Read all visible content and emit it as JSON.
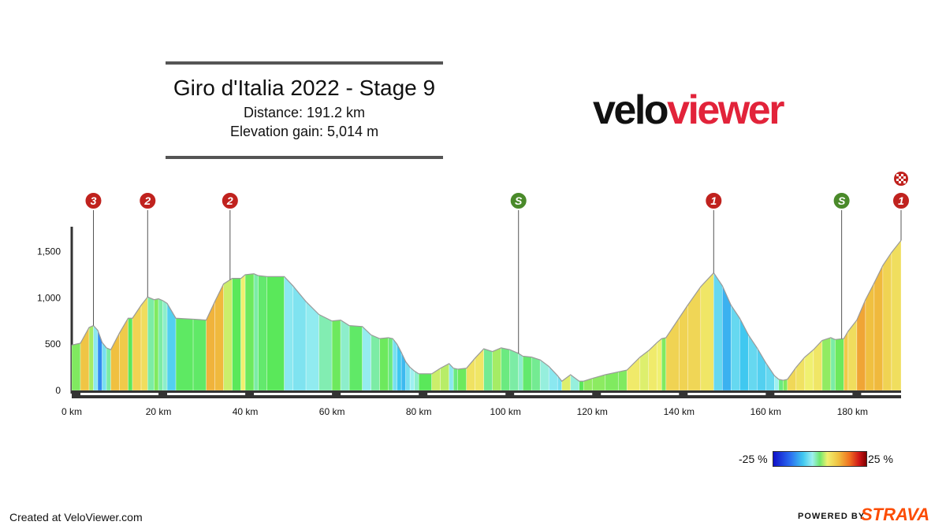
{
  "header": {
    "title": "Giro d'Italia 2022 - Stage 9",
    "distance": "Distance: 191.2 km",
    "elevation_gain": "Elevation gain: 5,014 m"
  },
  "logo": {
    "part1": "velo",
    "part2": "viewer"
  },
  "legend": {
    "min_label": "-25 %",
    "max_label": "25 %"
  },
  "footer": {
    "created": "Created at VeloViewer.com",
    "powered": "POWERED BY",
    "brand": "STRAVA"
  },
  "colors": {
    "brand_red": "#e2233a",
    "strava_orange": "#fc4c02",
    "climb_marker": "#c0221e",
    "sprint_marker": "#4a8a2a"
  },
  "chart_data": {
    "type": "area",
    "xlabel": "",
    "ylabel": "",
    "xlim": [
      0,
      191.2
    ],
    "ylim": [
      0,
      1700
    ],
    "x_ticks": [
      0,
      20,
      40,
      60,
      80,
      100,
      120,
      140,
      160,
      180
    ],
    "x_tick_labels": [
      "0 km",
      "20 km",
      "40 km",
      "60 km",
      "80 km",
      "100 km",
      "120 km",
      "140 km",
      "160 km",
      "180 km"
    ],
    "y_ticks": [
      0,
      500,
      1000,
      1500
    ],
    "y_tick_labels": [
      "0",
      "500",
      "1,000",
      "1,500"
    ],
    "profile": [
      [
        0,
        490
      ],
      [
        2,
        510
      ],
      [
        4,
        680
      ],
      [
        5,
        700
      ],
      [
        6,
        650
      ],
      [
        7,
        520
      ],
      [
        8,
        460
      ],
      [
        9,
        440
      ],
      [
        11,
        620
      ],
      [
        13,
        780
      ],
      [
        14,
        780
      ],
      [
        16,
        920
      ],
      [
        17.5,
        1010
      ],
      [
        19,
        980
      ],
      [
        20,
        990
      ],
      [
        21,
        970
      ],
      [
        22,
        940
      ],
      [
        24,
        780
      ],
      [
        28,
        770
      ],
      [
        31,
        760
      ],
      [
        33,
        960
      ],
      [
        35,
        1150
      ],
      [
        37,
        1210
      ],
      [
        39,
        1210
      ],
      [
        40,
        1250
      ],
      [
        42,
        1260
      ],
      [
        43,
        1240
      ],
      [
        45,
        1230
      ],
      [
        49,
        1230
      ],
      [
        51,
        1130
      ],
      [
        54,
        960
      ],
      [
        57,
        820
      ],
      [
        60,
        750
      ],
      [
        62,
        760
      ],
      [
        64,
        700
      ],
      [
        67,
        690
      ],
      [
        69,
        600
      ],
      [
        71,
        560
      ],
      [
        73,
        570
      ],
      [
        74,
        560
      ],
      [
        75,
        500
      ],
      [
        76,
        410
      ],
      [
        77,
        310
      ],
      [
        78,
        250
      ],
      [
        79,
        210
      ],
      [
        80,
        180
      ],
      [
        83,
        180
      ],
      [
        85,
        240
      ],
      [
        87,
        290
      ],
      [
        88,
        240
      ],
      [
        89,
        230
      ],
      [
        91,
        240
      ],
      [
        93,
        350
      ],
      [
        95,
        450
      ],
      [
        97,
        420
      ],
      [
        99,
        460
      ],
      [
        101,
        440
      ],
      [
        103,
        400
      ],
      [
        104,
        370
      ],
      [
        106,
        360
      ],
      [
        108,
        330
      ],
      [
        110,
        260
      ],
      [
        112,
        160
      ],
      [
        113,
        100
      ],
      [
        115,
        170
      ],
      [
        117,
        100
      ],
      [
        118,
        100
      ],
      [
        120,
        130
      ],
      [
        123,
        170
      ],
      [
        126,
        200
      ],
      [
        128,
        220
      ],
      [
        131,
        360
      ],
      [
        133,
        430
      ],
      [
        135,
        520
      ],
      [
        136,
        560
      ],
      [
        137,
        570
      ],
      [
        140,
        780
      ],
      [
        142,
        920
      ],
      [
        145,
        1120
      ],
      [
        148,
        1270
      ],
      [
        150,
        1130
      ],
      [
        152,
        920
      ],
      [
        154,
        780
      ],
      [
        156,
        600
      ],
      [
        158,
        460
      ],
      [
        160,
        300
      ],
      [
        162,
        160
      ],
      [
        163,
        120
      ],
      [
        164,
        110
      ],
      [
        165,
        120
      ],
      [
        167,
        250
      ],
      [
        169,
        360
      ],
      [
        171,
        440
      ],
      [
        173,
        540
      ],
      [
        175,
        570
      ],
      [
        176,
        550
      ],
      [
        178,
        560
      ],
      [
        179,
        640
      ],
      [
        181,
        760
      ],
      [
        183,
        980
      ],
      [
        185,
        1160
      ],
      [
        187,
        1350
      ],
      [
        189,
        1490
      ],
      [
        191.2,
        1620
      ]
    ],
    "markers": [
      {
        "km": 5,
        "label": "3",
        "kind": "climb"
      },
      {
        "km": 17.5,
        "label": "2",
        "kind": "climb"
      },
      {
        "km": 36.5,
        "label": "2",
        "kind": "climb"
      },
      {
        "km": 103,
        "label": "S",
        "kind": "sprint"
      },
      {
        "km": 148,
        "label": "1",
        "kind": "climb"
      },
      {
        "km": 177.5,
        "label": "S",
        "kind": "sprint"
      },
      {
        "km": 191.2,
        "label": "1",
        "kind": "climb"
      }
    ],
    "finish_marker_km": 191.2
  }
}
